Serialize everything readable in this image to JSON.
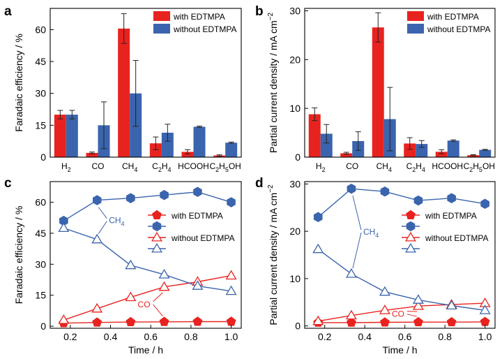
{
  "colors": {
    "red": "#e8231f",
    "blue": "#3a64ad",
    "err": "#222222",
    "axis": "#000000"
  },
  "chart_data": [
    {
      "panel": "a",
      "type": "bar",
      "ylabel": "Faradaic efficiency / %",
      "ylim": [
        0,
        70
      ],
      "yticks": [
        "0",
        "15",
        "30",
        "45",
        "60"
      ],
      "categories": [
        {
          "base": "H",
          "sub": "2",
          "tail": ""
        },
        {
          "base": "CO",
          "sub": "",
          "tail": ""
        },
        {
          "base": "CH",
          "sub": "4",
          "tail": ""
        },
        {
          "base": "C",
          "sub": "2",
          "tail": "H",
          "sub2": "4"
        },
        {
          "base": "HCOOH",
          "sub": "",
          "tail": ""
        },
        {
          "base": "C",
          "sub": "2",
          "tail": "H",
          "sub2": "5",
          "tail2": "OH"
        }
      ],
      "legend": [
        "with EDTMPA",
        "without EDTMPA"
      ],
      "series": [
        {
          "name": "with EDTMPA",
          "values": [
            20,
            2,
            60.5,
            6.5,
            2.5,
            0.8
          ],
          "errors": [
            2,
            0.4,
            7,
            3,
            1,
            0.3
          ]
        },
        {
          "name": "without EDTMPA",
          "values": [
            20,
            15,
            30,
            11.5,
            14.3,
            6.8
          ],
          "errors": [
            2,
            11,
            15.5,
            4,
            0.3,
            0.3
          ]
        }
      ]
    },
    {
      "panel": "b",
      "type": "bar",
      "ylabel": "Partial current density / mA cm",
      "ylabel_sup": "−2",
      "ylim": [
        0,
        30.5
      ],
      "yticks": [
        "0",
        "10",
        "20",
        "30"
      ],
      "categories": [
        {
          "base": "H",
          "sub": "2",
          "tail": ""
        },
        {
          "base": "CO",
          "sub": "",
          "tail": ""
        },
        {
          "base": "CH",
          "sub": "4",
          "tail": ""
        },
        {
          "base": "C",
          "sub": "2",
          "tail": "H",
          "sub2": "4"
        },
        {
          "base": "HCOOH",
          "sub": "",
          "tail": ""
        },
        {
          "base": "C",
          "sub": "2",
          "tail": "H",
          "sub2": "5",
          "tail2": "OH"
        }
      ],
      "legend": [
        "with EDTMPA",
        "without EDTMPA"
      ],
      "series": [
        {
          "name": "with EDTMPA",
          "values": [
            8.8,
            0.8,
            26.6,
            2.8,
            1.1,
            0.4
          ],
          "errors": [
            1.3,
            0.2,
            3,
            1.2,
            0.4,
            0.1
          ]
        },
        {
          "name": "without EDTMPA",
          "values": [
            4.8,
            3.3,
            7.8,
            2.7,
            3.4,
            1.5
          ],
          "errors": [
            1.9,
            1.9,
            6.5,
            0.7,
            0.15,
            0.1
          ]
        }
      ]
    },
    {
      "panel": "c",
      "type": "line",
      "xlabel": "Time / h",
      "ylabel": "Faradaic efficiency / %",
      "xlim": [
        0.1,
        1.05
      ],
      "ylim": [
        -1,
        70
      ],
      "xticks": [
        "0.2",
        "0.4",
        "0.6",
        "0.8",
        "1.0"
      ],
      "yticks": [
        "0",
        "15",
        "30",
        "45",
        "60"
      ],
      "x": [
        0.167,
        0.333,
        0.5,
        0.667,
        0.833,
        1.0
      ],
      "legend": [
        "with EDTMPA",
        "",
        "without EDTMPA",
        ""
      ],
      "annotations": {
        "ch4_base": "CH",
        "ch4_sub": "4",
        "co": "CO"
      },
      "series": [
        {
          "name": "with EDTMPA CO",
          "color": "red",
          "marker": "pentagon",
          "filled": true,
          "values": [
            1.5,
            1.8,
            2.0,
            2.1,
            2.2,
            2.2
          ]
        },
        {
          "name": "with EDTMPA CH4",
          "color": "blue",
          "marker": "hexagon",
          "filled": true,
          "values": [
            51,
            61,
            62,
            63.5,
            65,
            60
          ]
        },
        {
          "name": "without EDTMPA CO",
          "color": "red",
          "marker": "triangle",
          "filled": false,
          "values": [
            3,
            8.5,
            14,
            19,
            21.5,
            24.5
          ]
        },
        {
          "name": "without EDTMPA CH4",
          "color": "blue",
          "marker": "triangle",
          "filled": false,
          "values": [
            47.5,
            42,
            29.5,
            25,
            19.5,
            17
          ]
        }
      ]
    },
    {
      "panel": "d",
      "type": "line",
      "xlabel": "Time / h",
      "ylabel": "Partial current density / mA cm",
      "ylabel_sup": "−2",
      "xlim": [
        0.1,
        1.05
      ],
      "ylim": [
        -0.5,
        30.5
      ],
      "xticks": [
        "0.2",
        "0.4",
        "0.6",
        "0.8",
        "1.0"
      ],
      "yticks": [
        "0",
        "10",
        "20",
        "30"
      ],
      "x": [
        0.167,
        0.333,
        0.5,
        0.667,
        0.833,
        1.0
      ],
      "legend": [
        "with EDTMPA",
        "",
        "without EDTMPA",
        ""
      ],
      "annotations": {
        "ch4_base": "CH",
        "ch4_sub": "4",
        "co": "CO"
      },
      "series": [
        {
          "name": "with EDTMPA CO",
          "color": "red",
          "marker": "pentagon",
          "filled": true,
          "values": [
            0.7,
            0.7,
            0.75,
            0.8,
            0.8,
            0.85
          ]
        },
        {
          "name": "with EDTMPA CH4",
          "color": "blue",
          "marker": "hexagon",
          "filled": true,
          "values": [
            23,
            29,
            28.4,
            26.5,
            27,
            25.8
          ]
        },
        {
          "name": "without EDTMPA CO",
          "color": "red",
          "marker": "triangle",
          "filled": false,
          "values": [
            1.0,
            2.2,
            3.3,
            4.2,
            4.5,
            4.8
          ]
        },
        {
          "name": "without EDTMPA CH4",
          "color": "blue",
          "marker": "triangle",
          "filled": false,
          "values": [
            16.2,
            11,
            7.2,
            5.5,
            4.3,
            3.3
          ]
        }
      ]
    }
  ]
}
